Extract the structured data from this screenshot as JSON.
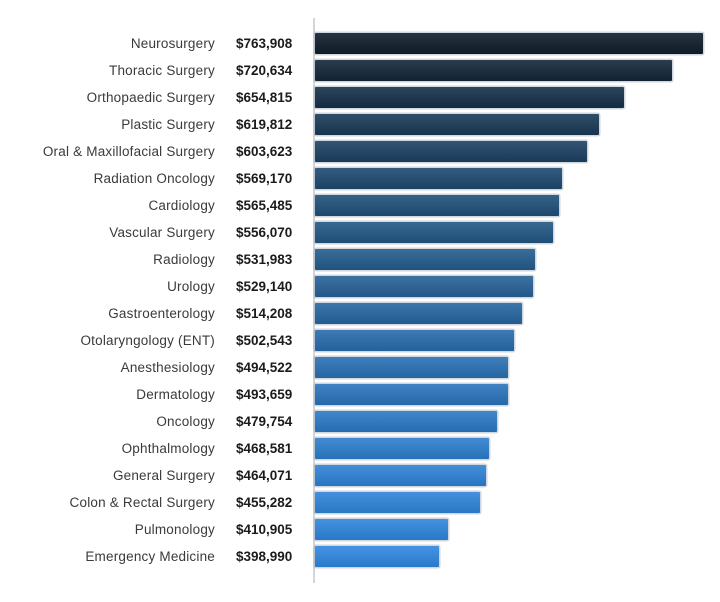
{
  "chart_data": {
    "type": "bar",
    "orientation": "horizontal",
    "title": "",
    "xlabel": "",
    "ylabel": "",
    "grid": false,
    "legend": false,
    "xlim": [
      227500,
      763908
    ],
    "categories": [
      "Neurosurgery",
      "Thoracic Surgery",
      "Orthopaedic Surgery",
      "Plastic Surgery",
      "Oral & Maxillofacial Surgery",
      "Radiation Oncology",
      "Cardiology",
      "Vascular Surgery",
      "Radiology",
      "Urology",
      "Gastroenterology",
      "Otolaryngology (ENT)",
      "Anesthesiology",
      "Dermatology",
      "Oncology",
      "Ophthalmology",
      "General Surgery",
      "Colon & Rectal Surgery",
      "Pulmonology",
      "Emergency Medicine"
    ],
    "values": [
      763908,
      720634,
      654815,
      619812,
      603623,
      569170,
      565485,
      556070,
      531983,
      529140,
      514208,
      502543,
      494522,
      493659,
      479754,
      468581,
      464071,
      455282,
      410905,
      398990
    ],
    "value_labels": [
      "$763,908",
      "$720,634",
      "$654,815",
      "$619,812",
      "$603,623",
      "$569,170",
      "$565,485",
      "$556,070",
      "$531,983",
      "$529,140",
      "$514,208",
      "$502,543",
      "$494,522",
      "$493,659",
      "$479,754",
      "$468,581",
      "$464,071",
      "$455,282",
      "$410,905",
      "$398,990"
    ],
    "bar_colors": [
      "#101D2B",
      "#132639",
      "#163048",
      "#193A57",
      "#1C4162",
      "#1E4A70",
      "#20507A",
      "#225683",
      "#245C8D",
      "#266197",
      "#2766A1",
      "#286BAB",
      "#2970B4",
      "#2A74BC",
      "#2B79C5",
      "#2C7ECE",
      "#2D82D6",
      "#2E85DA",
      "#2E86DD",
      "#2F88E0"
    ]
  },
  "style": {
    "background": "#ffffff",
    "label_color": "#3a3a3a",
    "value_color": "#1b1b1b",
    "axis_line_color": "#d2d6da"
  }
}
